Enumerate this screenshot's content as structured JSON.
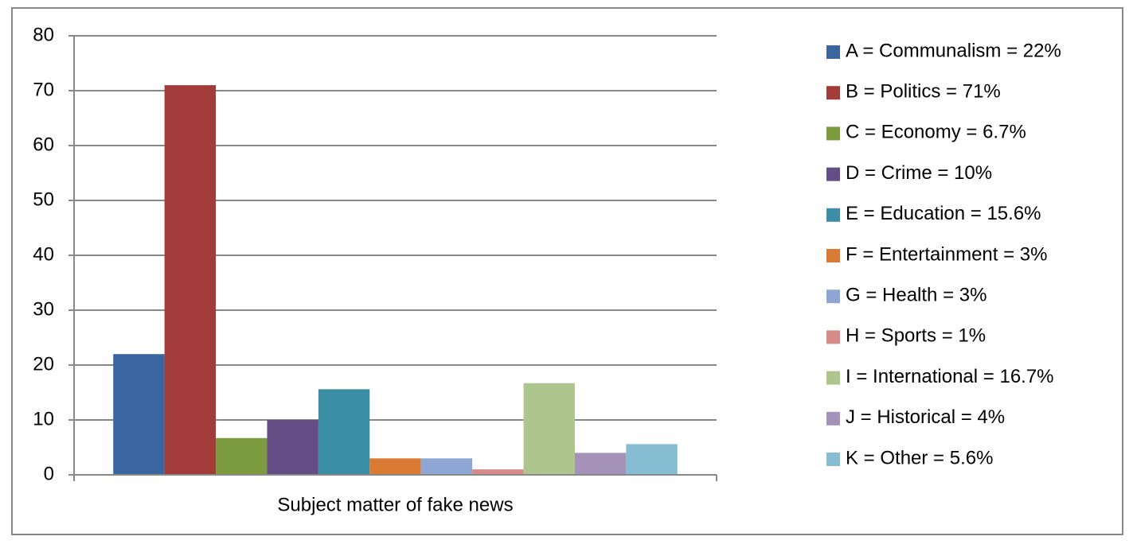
{
  "chart_data": {
    "type": "bar",
    "categories": [
      "Subject matter of fake news"
    ],
    "series": [
      {
        "name": "A = Communalism = 22%",
        "color": "#3a66a0",
        "values": [
          22
        ]
      },
      {
        "name": "B = Politics = 71%",
        "color": "#a33b3a",
        "values": [
          71
        ]
      },
      {
        "name": "C = Economy = 6.7%",
        "color": "#7c9a3e",
        "values": [
          6.7
        ]
      },
      {
        "name": "D = Crime = 10%",
        "color": "#654d86",
        "values": [
          10
        ]
      },
      {
        "name": "E = Education = 15.6%",
        "color": "#3b8ea5",
        "values": [
          15.6
        ]
      },
      {
        "name": "F = Entertainment = 3%",
        "color": "#da7a33",
        "values": [
          3
        ]
      },
      {
        "name": "G = Health = 3%",
        "color": "#8ea6d4",
        "values": [
          3
        ]
      },
      {
        "name": "H = Sports = 1%",
        "color": "#d68b8a",
        "values": [
          1
        ]
      },
      {
        "name": "I = International = 16.7%",
        "color": "#aec68d",
        "values": [
          16.7
        ]
      },
      {
        "name": "J = Historical = 4%",
        "color": "#a592b8",
        "values": [
          4
        ]
      },
      {
        "name": "K = Other = 5.6%",
        "color": "#86bdd2",
        "values": [
          5.6
        ]
      }
    ],
    "ylim": [
      0,
      80
    ],
    "yticks": [
      0,
      10,
      20,
      30,
      40,
      50,
      60,
      70,
      80
    ],
    "grid": true,
    "legend": "right"
  }
}
